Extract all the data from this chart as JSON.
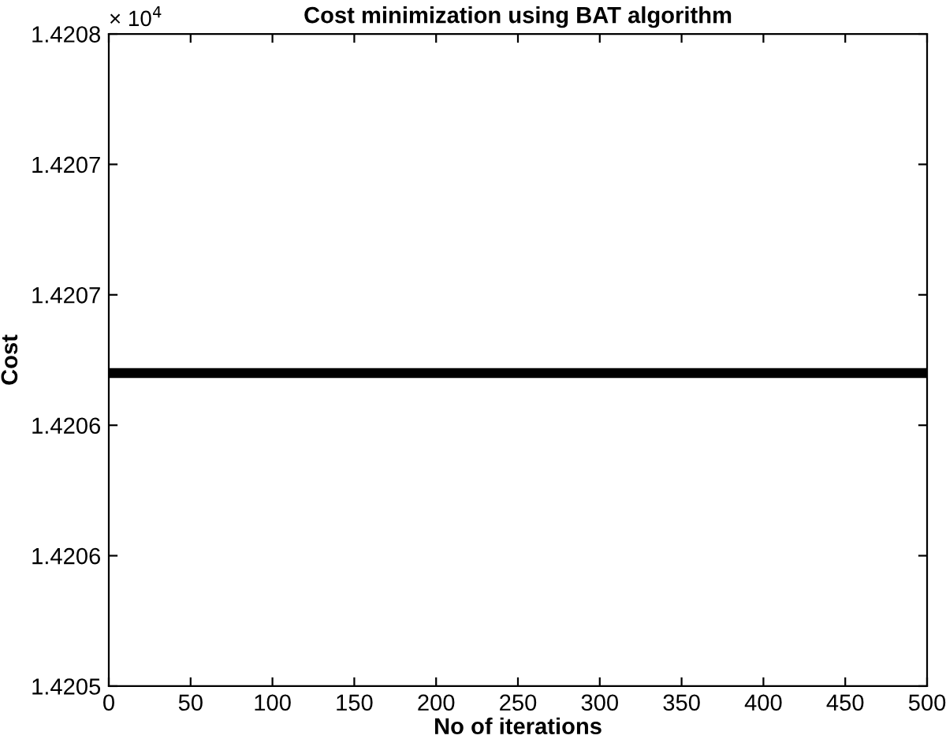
{
  "chart_data": {
    "type": "line",
    "title": "Cost minimization using BAT algorithm",
    "xlabel": "No of iterations",
    "ylabel": "Cost",
    "annotations": [
      "× 10$^{4}$"
    ],
    "series": [
      {
        "color": "#000000",
        "x": [
          0,
          500
        ],
        "values": [
          1.42062,
          1.42062
        ]
      }
    ],
    "xlim": [
      0,
      500
    ],
    "xticks": [
      0,
      50,
      100,
      150,
      200,
      250,
      300,
      350,
      400,
      450,
      500
    ],
    "ylim": [
      1.4205,
      1.42075
    ],
    "yticks": [
      {
        "value": 1.4205,
        "label": "1.4205"
      },
      {
        "value": 1.42055,
        "label": "1.4206"
      },
      {
        "value": 1.4206,
        "label": "1.4206"
      },
      {
        "value": 1.42065,
        "label": "1.4207"
      },
      {
        "value": 1.4207,
        "label": "1.4207"
      },
      {
        "value": 1.42075,
        "label": "1.4208"
      }
    ],
    "grid": false,
    "legend": false,
    "marker": "none",
    "line_style": "solid"
  }
}
